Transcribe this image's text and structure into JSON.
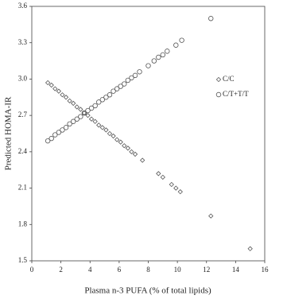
{
  "chart_data": {
    "type": "scatter",
    "x_label": "Plasma n-3 PUFA (% of total lipids)",
    "y_label": "Predicted HOMA-IR",
    "xlim": [
      0,
      16
    ],
    "xticks": [
      0,
      2,
      4,
      6,
      8,
      10,
      12,
      14,
      16
    ],
    "ylim": [
      1.5,
      3.6
    ],
    "yticks": [
      1.5,
      1.8,
      2.1,
      2.4,
      2.7,
      {
        "value": 3,
        "label": "3.0"
      },
      3.3,
      3.6
    ],
    "legend": "right",
    "series": [
      {
        "name": "C/C",
        "marker": "diamond",
        "color": "#555555",
        "x": [
          1.1,
          1.35,
          1.6,
          1.85,
          2.1,
          2.35,
          2.6,
          2.85,
          3.1,
          3.35,
          3.6,
          3.85,
          4.1,
          4.35,
          4.6,
          4.85,
          5.1,
          5.35,
          5.6,
          5.85,
          6.1,
          6.35,
          6.6,
          6.85,
          7.1,
          7.6,
          8.7,
          9.0,
          9.6,
          9.9,
          10.2,
          12.3,
          15.0
        ],
        "values": [
          2.97,
          2.95,
          2.92,
          2.9,
          2.87,
          2.85,
          2.82,
          2.8,
          2.77,
          2.75,
          2.72,
          2.7,
          2.67,
          2.65,
          2.62,
          2.6,
          2.58,
          2.55,
          2.53,
          2.5,
          2.48,
          2.45,
          2.43,
          2.4,
          2.38,
          2.33,
          2.22,
          2.19,
          2.13,
          2.1,
          2.07,
          1.87,
          1.6
        ]
      },
      {
        "name": "C/T+T/T",
        "marker": "circle",
        "color": "#555555",
        "x": [
          1.1,
          1.35,
          1.6,
          1.85,
          2.1,
          2.35,
          2.6,
          2.85,
          3.1,
          3.35,
          3.6,
          3.85,
          4.1,
          4.35,
          4.6,
          4.85,
          5.1,
          5.35,
          5.6,
          5.85,
          6.1,
          6.35,
          6.6,
          6.85,
          7.1,
          7.4,
          8.0,
          8.4,
          8.7,
          9.0,
          9.3,
          9.9,
          10.3,
          12.3
        ],
        "values": [
          2.49,
          2.51,
          2.54,
          2.56,
          2.58,
          2.6,
          2.63,
          2.65,
          2.67,
          2.69,
          2.72,
          2.74,
          2.76,
          2.78,
          2.81,
          2.83,
          2.85,
          2.87,
          2.9,
          2.92,
          2.94,
          2.96,
          2.99,
          3.01,
          3.03,
          3.06,
          3.11,
          3.15,
          3.18,
          3.2,
          3.23,
          3.28,
          3.32,
          3.5
        ]
      }
    ]
  }
}
